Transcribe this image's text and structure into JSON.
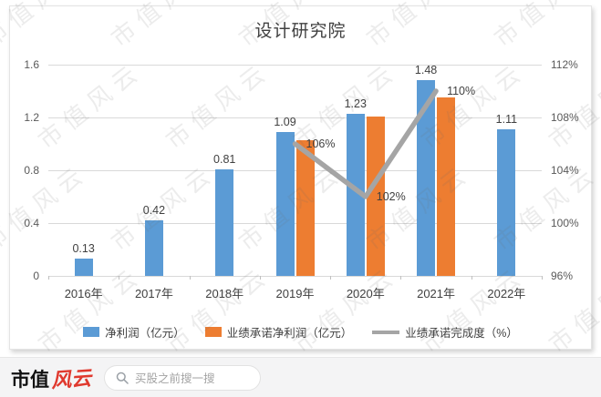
{
  "watermark": {
    "text": "市值风云"
  },
  "chart_data": {
    "type": "combo",
    "title": "设计研究院",
    "categories": [
      "2016年",
      "2017年",
      "2018年",
      "2019年",
      "2020年",
      "2021年",
      "2022年"
    ],
    "series": [
      {
        "name": "净利润（亿元）",
        "type": "bar",
        "color": "#5B9BD5",
        "axis": "left",
        "values": [
          0.13,
          0.42,
          0.81,
          1.09,
          1.23,
          1.48,
          1.11
        ],
        "labels": [
          "0.13",
          "0.42",
          "0.81",
          "1.09",
          "1.23",
          "1.48",
          "1.11"
        ]
      },
      {
        "name": "业绩承诺净利润（亿元）",
        "type": "bar",
        "color": "#ED7D31",
        "axis": "left",
        "values": [
          null,
          null,
          null,
          1.03,
          1.21,
          1.35,
          null
        ],
        "labels": [
          null,
          null,
          null,
          null,
          null,
          null,
          null
        ]
      },
      {
        "name": "业绩承诺完成度（%）",
        "type": "line",
        "color": "#A5A5A5",
        "axis": "right",
        "values": [
          null,
          null,
          null,
          106,
          102,
          110,
          null
        ],
        "labels": [
          null,
          null,
          null,
          "106%",
          "102%",
          "110%",
          null
        ]
      }
    ],
    "left_axis": {
      "min": 0,
      "max": 1.6,
      "ticks": [
        "1.6",
        "1.2",
        "0.8",
        "0.4",
        "0"
      ]
    },
    "right_axis": {
      "min": 96,
      "max": 112,
      "ticks": [
        "112%",
        "108%",
        "104%",
        "100%",
        "96%"
      ]
    },
    "grid": true,
    "legend_position": "bottom"
  },
  "footer": {
    "logo_part1": "市值",
    "logo_part2": "风云",
    "search_placeholder": "买股之前搜一搜"
  }
}
